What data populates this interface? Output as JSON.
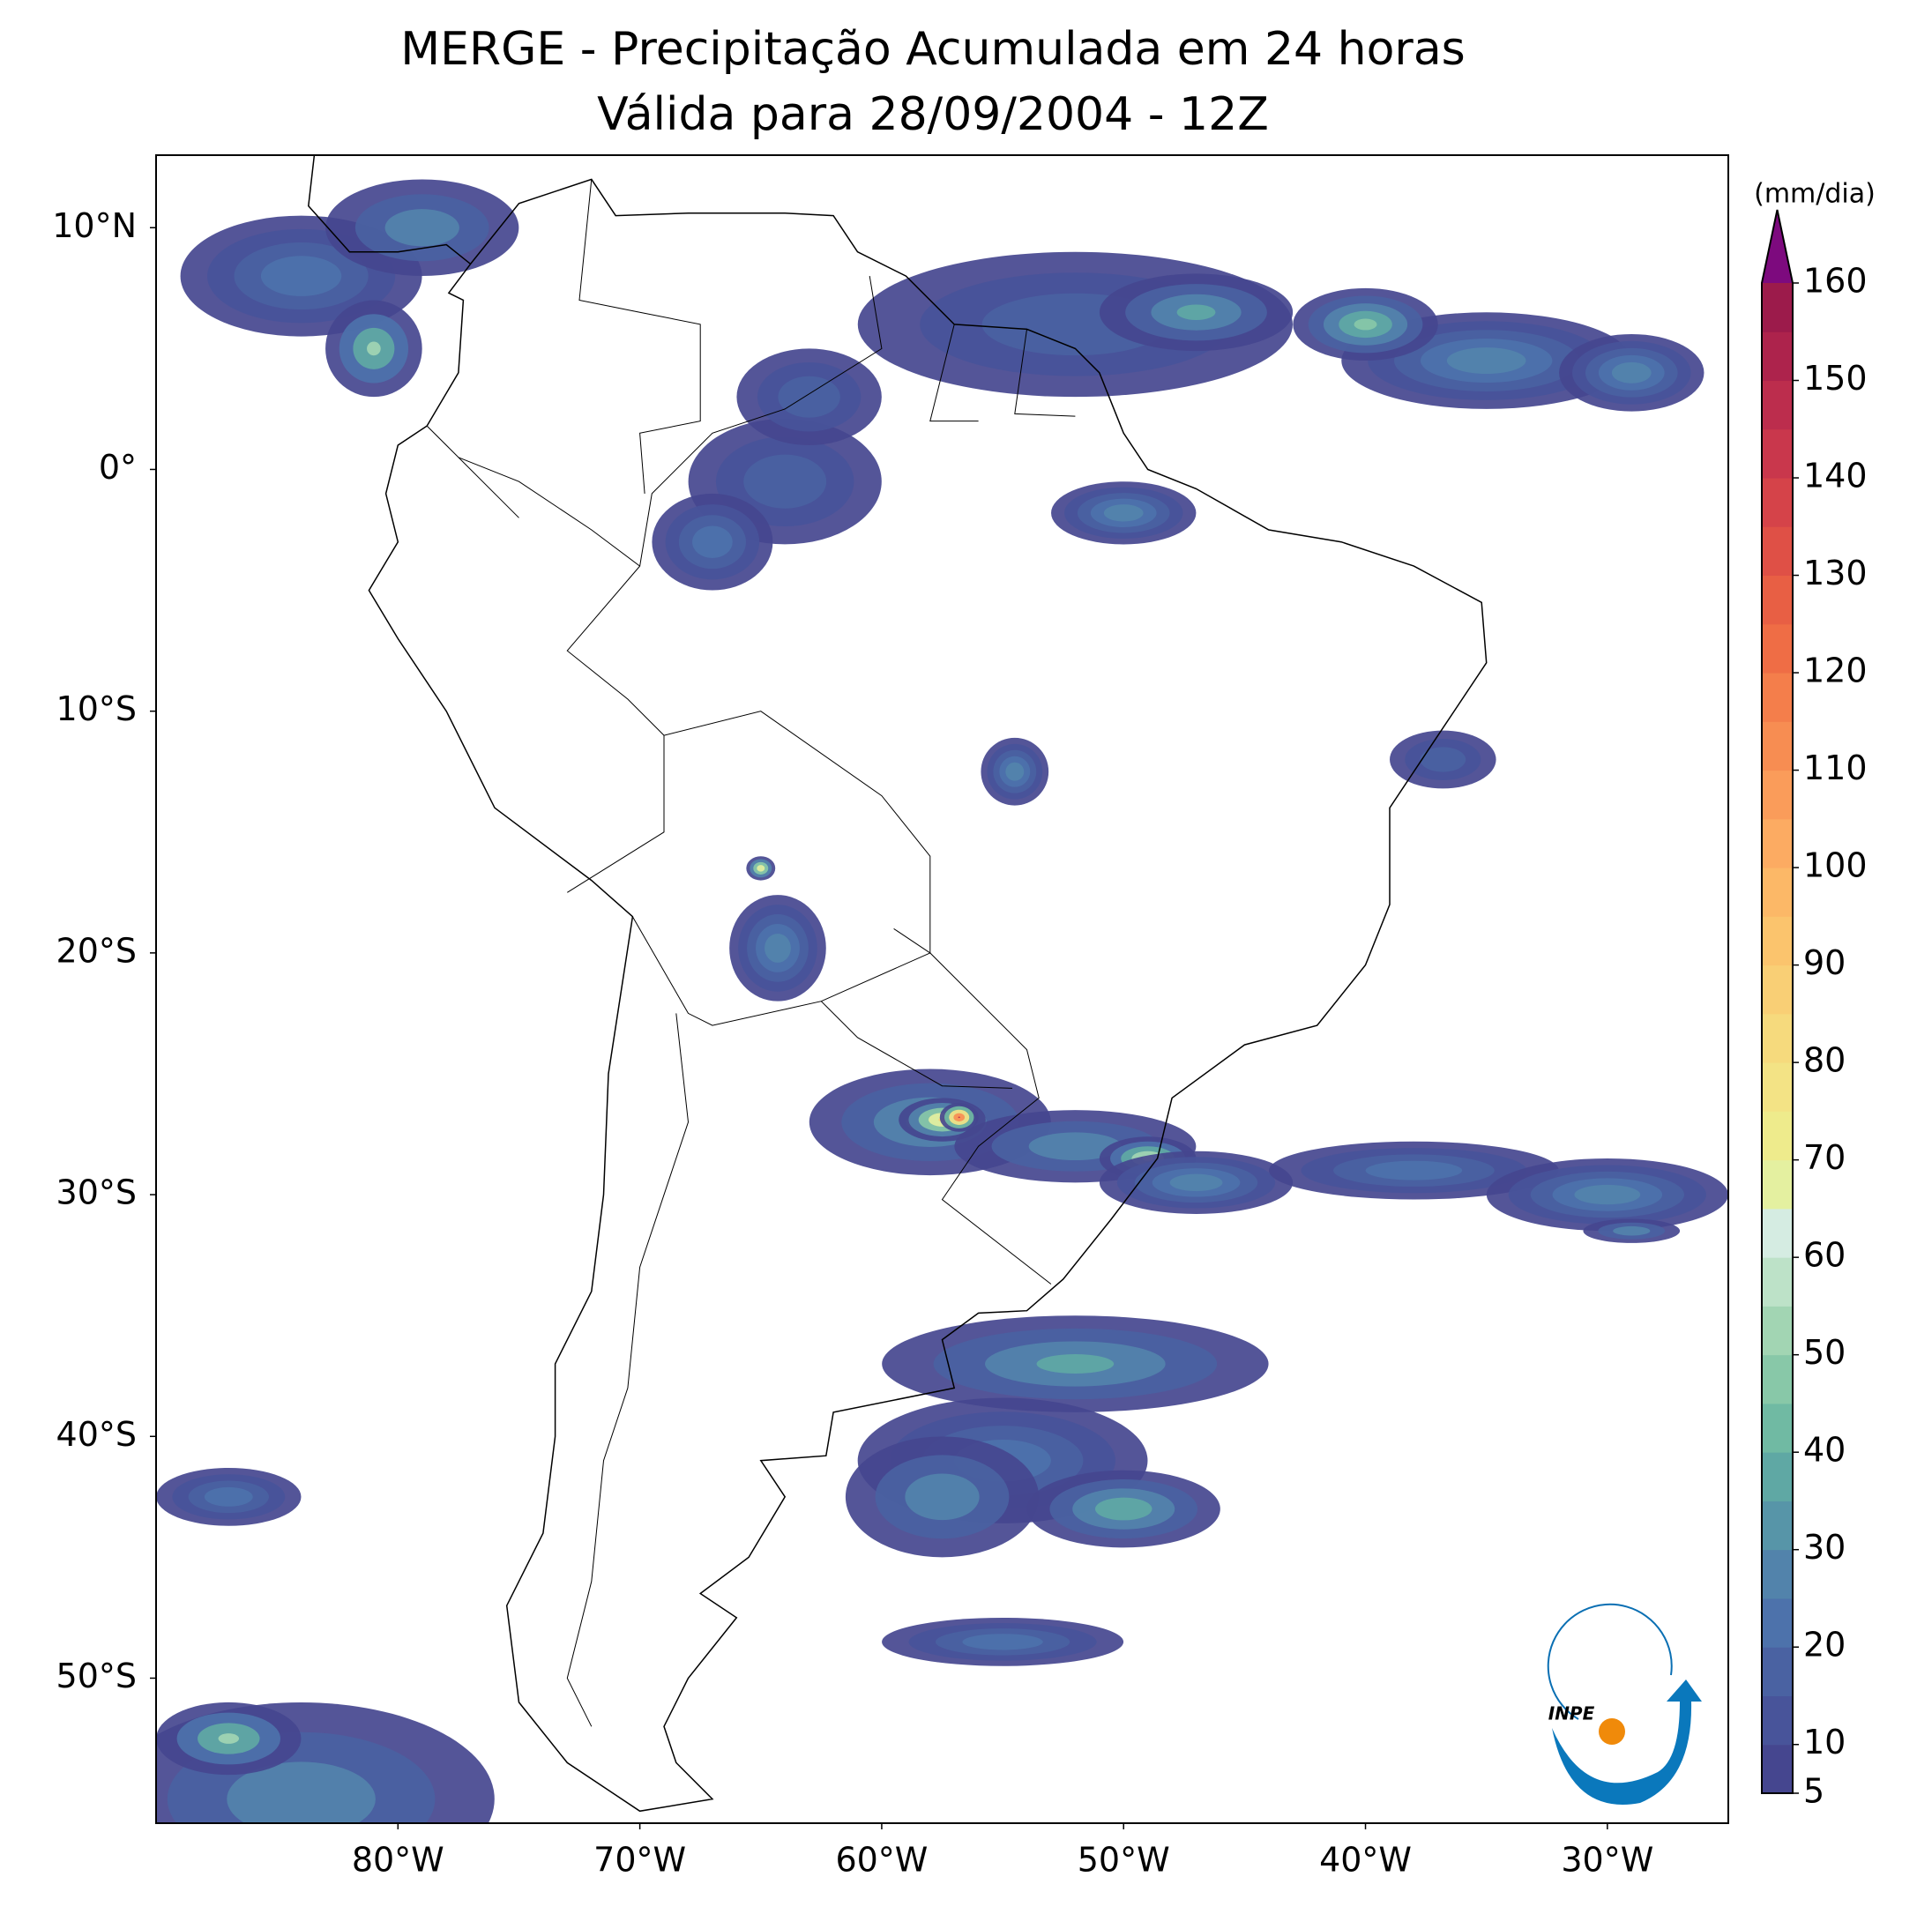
{
  "chart_data": {
    "type": "map",
    "title": "MERGE - Precipitação Acumulada em 24 horas",
    "subtitle": "Válida para 28/09/2004 - 12Z",
    "xlim": [
      -90,
      -25
    ],
    "ylim": [
      -56,
      13
    ],
    "xticks": [
      {
        "value": -80,
        "label": "80°W"
      },
      {
        "value": -70,
        "label": "70°W"
      },
      {
        "value": -60,
        "label": "60°W"
      },
      {
        "value": -50,
        "label": "50°W"
      },
      {
        "value": -40,
        "label": "40°W"
      },
      {
        "value": -30,
        "label": "30°W"
      }
    ],
    "yticks": [
      {
        "value": 10,
        "label": "10°N"
      },
      {
        "value": 0,
        "label": "0°"
      },
      {
        "value": -10,
        "label": "10°S"
      },
      {
        "value": -20,
        "label": "20°S"
      },
      {
        "value": -30,
        "label": "30°S"
      },
      {
        "value": -40,
        "label": "40°S"
      },
      {
        "value": -50,
        "label": "50°S"
      }
    ],
    "colorbar": {
      "label": "(mm/dia)",
      "lim": [
        5,
        160
      ],
      "ticks": [
        5,
        10,
        20,
        30,
        40,
        50,
        60,
        70,
        80,
        90,
        100,
        110,
        120,
        130,
        140,
        150,
        160
      ],
      "levels": [
        5,
        10,
        15,
        20,
        25,
        30,
        35,
        40,
        45,
        50,
        55,
        60,
        65,
        70,
        75,
        80,
        85,
        90,
        95,
        100,
        105,
        110,
        115,
        120,
        125,
        130,
        135,
        140,
        145,
        150,
        155,
        160
      ],
      "colors": [
        "#45468f",
        "#48549a",
        "#4a62a2",
        "#4d72ab",
        "#5283ab",
        "#5795a8",
        "#5fa8a4",
        "#70baa3",
        "#88c8a8",
        "#a2d5b3",
        "#bde2c8",
        "#d5ece2",
        "#e4f0a0",
        "#eeeb8c",
        "#f3e385",
        "#f6da7d",
        "#f9cf75",
        "#fbc46d",
        "#fcb867",
        "#fcab62",
        "#fa9c5a",
        "#f78d52",
        "#f47e4b",
        "#ef6d45",
        "#e85f44",
        "#df5046",
        "#d54349",
        "#c9374c",
        "#bc2d4d",
        "#ad234c",
        "#9c1b4b"
      ],
      "extend_color": "#7d0a7e"
    }
  },
  "logo": {
    "text": "INPE"
  }
}
